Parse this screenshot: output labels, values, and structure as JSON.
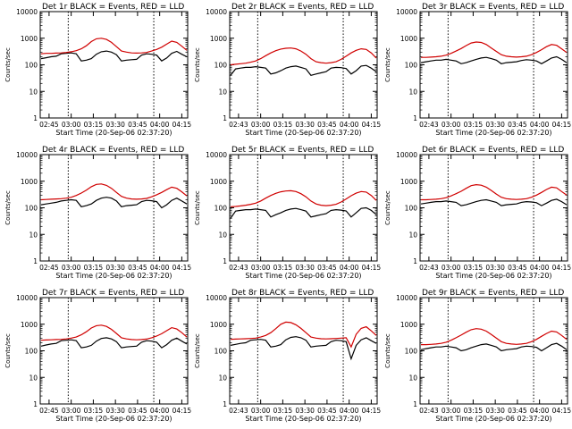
{
  "chart_data": [
    {
      "type": "line",
      "title": "Det 1r BLACK = Events, RED = LLD",
      "xlabel": "Start Time (20-Sep-06 02:37:20)",
      "ylabel": "Counts/sec",
      "ylog": true,
      "ylim": [
        1,
        10000
      ],
      "yticks": [
        "1",
        "10",
        "100",
        "1000",
        "10000"
      ],
      "xticks": [
        "02:45",
        "03:00",
        "03:15",
        "03:30",
        "03:45",
        "04:00",
        "04:15"
      ],
      "series": [
        {
          "name": "Events",
          "color": "#000000",
          "values": [
            170,
            185,
            200,
            210,
            260,
            270,
            280,
            260,
            140,
            150,
            170,
            250,
            310,
            330,
            300,
            240,
            140,
            150,
            155,
            160,
            230,
            260,
            250,
            230,
            140,
            180,
            270,
            320,
            250,
            200
          ]
        },
        {
          "name": "LLD",
          "color": "#d00000",
          "values": [
            260,
            270,
            270,
            275,
            280,
            290,
            310,
            340,
            400,
            520,
            750,
            950,
            1000,
            900,
            700,
            480,
            330,
            300,
            280,
            275,
            280,
            290,
            330,
            380,
            460,
            600,
            780,
            700,
            500,
            350
          ]
        }
      ]
    },
    {
      "type": "line",
      "title": "Det 2r BLACK = Events, RED = LLD",
      "xlabel": "Start Time (20-Sep-06 02:37:20)",
      "ylabel": "Counts/sec",
      "ylog": true,
      "ylim": [
        1,
        10000
      ],
      "yticks": [
        "1",
        "10",
        "100",
        "1000",
        "10000"
      ],
      "xticks": [
        "02:43",
        "03:00",
        "03:15",
        "03:30",
        "03:45",
        "04:00",
        "04:15"
      ],
      "series": [
        {
          "name": "Events",
          "color": "#000000",
          "values": [
            40,
            70,
            75,
            80,
            80,
            85,
            80,
            75,
            45,
            50,
            60,
            75,
            85,
            90,
            80,
            70,
            40,
            45,
            50,
            55,
            75,
            80,
            78,
            72,
            45,
            60,
            90,
            95,
            75,
            55
          ]
        },
        {
          "name": "LLD",
          "color": "#d00000",
          "values": [
            100,
            105,
            110,
            115,
            125,
            140,
            170,
            220,
            280,
            340,
            390,
            420,
            430,
            400,
            330,
            250,
            170,
            130,
            120,
            115,
            120,
            130,
            160,
            210,
            280,
            350,
            400,
            380,
            280,
            180
          ]
        }
      ]
    },
    {
      "type": "line",
      "title": "Det 3r BLACK = Events, RED = LLD",
      "xlabel": "Start Time (20-Sep-06 02:37:20)",
      "ylabel": "Counts/sec",
      "ylog": true,
      "ylim": [
        1,
        10000
      ],
      "yticks": [
        "1",
        "10",
        "100",
        "1000",
        "10000"
      ],
      "xticks": [
        "02:43",
        "03:00",
        "03:15",
        "03:30",
        "03:45",
        "04:00",
        "04:15"
      ],
      "series": [
        {
          "name": "Events",
          "color": "#000000",
          "values": [
            120,
            130,
            140,
            150,
            150,
            160,
            150,
            140,
            110,
            120,
            140,
            160,
            180,
            190,
            170,
            150,
            110,
            120,
            125,
            130,
            145,
            155,
            150,
            140,
            110,
            140,
            180,
            200,
            160,
            120
          ]
        },
        {
          "name": "LLD",
          "color": "#d00000",
          "values": [
            190,
            190,
            195,
            200,
            210,
            230,
            270,
            330,
            410,
            530,
            660,
            720,
            690,
            580,
            430,
            320,
            240,
            210,
            200,
            195,
            200,
            210,
            240,
            290,
            370,
            480,
            580,
            540,
            400,
            290
          ]
        }
      ]
    },
    {
      "type": "line",
      "title": "Det 4r BLACK = Events, RED = LLD",
      "xlabel": "Start Time (20-Sep-06 02:37:20)",
      "ylabel": "Counts/sec",
      "ylog": true,
      "ylim": [
        1,
        10000
      ],
      "yticks": [
        "1",
        "10",
        "100",
        "1000",
        "10000"
      ],
      "xticks": [
        "02:45",
        "03:00",
        "03:15",
        "03:30",
        "03:45",
        "04:00",
        "04:15"
      ],
      "series": [
        {
          "name": "Events",
          "color": "#000000",
          "values": [
            130,
            140,
            150,
            160,
            180,
            190,
            200,
            190,
            110,
            120,
            140,
            190,
            230,
            250,
            230,
            180,
            110,
            120,
            125,
            130,
            170,
            190,
            185,
            170,
            100,
            130,
            190,
            230,
            180,
            140
          ]
        },
        {
          "name": "LLD",
          "color": "#d00000",
          "values": [
            200,
            205,
            210,
            215,
            220,
            230,
            250,
            290,
            360,
            460,
            620,
            760,
            790,
            700,
            540,
            380,
            270,
            230,
            215,
            210,
            215,
            225,
            260,
            310,
            380,
            480,
            600,
            540,
            400,
            280
          ]
        }
      ]
    },
    {
      "type": "line",
      "title": "Det 5r BLACK = Events, RED = LLD",
      "xlabel": "Start Time (20-Sep-06 02:37:20)",
      "ylabel": "Counts/sec",
      "ylog": true,
      "ylim": [
        1,
        10000
      ],
      "yticks": [
        "1",
        "10",
        "100",
        "1000",
        "10000"
      ],
      "xticks": [
        "02:43",
        "03:00",
        "03:15",
        "03:30",
        "03:45",
        "04:00",
        "04:15"
      ],
      "series": [
        {
          "name": "Events",
          "color": "#000000",
          "values": [
            40,
            75,
            80,
            85,
            85,
            90,
            85,
            80,
            45,
            55,
            65,
            80,
            90,
            95,
            85,
            75,
            45,
            50,
            55,
            60,
            80,
            85,
            82,
            76,
            45,
            65,
            95,
            100,
            80,
            55
          ]
        },
        {
          "name": "LLD",
          "color": "#d00000",
          "values": [
            110,
            112,
            118,
            125,
            135,
            150,
            180,
            230,
            290,
            350,
            400,
            430,
            440,
            410,
            340,
            260,
            180,
            140,
            125,
            120,
            125,
            135,
            165,
            215,
            285,
            355,
            410,
            390,
            290,
            190
          ]
        }
      ]
    },
    {
      "type": "line",
      "title": "Det 6r BLACK = Events, RED = LLD",
      "xlabel": "Start Time (20-Sep-06 02:37:20)",
      "ylabel": "Counts/sec",
      "ylog": true,
      "ylim": [
        1,
        10000
      ],
      "yticks": [
        "1",
        "10",
        "100",
        "1000",
        "10000"
      ],
      "xticks": [
        "02:43",
        "03:00",
        "03:15",
        "03:30",
        "03:45",
        "04:00",
        "04:15"
      ],
      "series": [
        {
          "name": "Events",
          "color": "#000000",
          "values": [
            140,
            150,
            160,
            170,
            170,
            180,
            170,
            160,
            120,
            130,
            150,
            170,
            190,
            200,
            180,
            160,
            120,
            130,
            135,
            140,
            160,
            170,
            165,
            155,
            120,
            150,
            190,
            210,
            170,
            130
          ]
        },
        {
          "name": "LLD",
          "color": "#d00000",
          "values": [
            200,
            200,
            205,
            210,
            220,
            240,
            280,
            340,
            420,
            540,
            680,
            740,
            710,
            600,
            450,
            330,
            250,
            220,
            210,
            205,
            210,
            220,
            250,
            300,
            380,
            490,
            600,
            560,
            410,
            300
          ]
        }
      ]
    },
    {
      "type": "line",
      "title": "Det 7r BLACK = Events, RED = LLD",
      "xlabel": "Start Time (20-Sep-06 02:37:20)",
      "ylabel": "Counts/sec",
      "ylog": true,
      "ylim": [
        1,
        10000
      ],
      "yticks": [
        "1",
        "10",
        "100",
        "1000",
        "10000"
      ],
      "xticks": [
        "02:45",
        "03:00",
        "03:15",
        "03:30",
        "03:45",
        "04:00",
        "04:15"
      ],
      "series": [
        {
          "name": "Events",
          "color": "#000000",
          "values": [
            150,
            165,
            180,
            190,
            240,
            250,
            260,
            240,
            130,
            140,
            160,
            230,
            290,
            310,
            280,
            220,
            130,
            140,
            145,
            150,
            210,
            240,
            230,
            210,
            130,
            170,
            250,
            300,
            230,
            180
          ]
        },
        {
          "name": "LLD",
          "color": "#d00000",
          "values": [
            250,
            255,
            260,
            265,
            270,
            280,
            300,
            330,
            400,
            520,
            720,
            880,
            920,
            830,
            640,
            450,
            310,
            280,
            265,
            260,
            265,
            275,
            310,
            360,
            440,
            570,
            740,
            660,
            480,
            330
          ]
        }
      ]
    },
    {
      "type": "line",
      "title": "Det 8r BLACK = Events, RED = LLD",
      "xlabel": "Start Time (20-Sep-06 02:37:20)",
      "ylabel": "Counts/sec",
      "ylog": true,
      "ylim": [
        1,
        10000
      ],
      "yticks": [
        "1",
        "10",
        "100",
        "1000",
        "10000"
      ],
      "xticks": [
        "02:43",
        "03:00",
        "03:15",
        "03:30",
        "03:45",
        "04:00",
        "04:15"
      ],
      "series": [
        {
          "name": "Events",
          "color": "#000000",
          "values": [
            160,
            175,
            190,
            200,
            250,
            260,
            270,
            250,
            140,
            150,
            170,
            260,
            320,
            340,
            310,
            250,
            140,
            150,
            155,
            160,
            220,
            250,
            240,
            220,
            50,
            160,
            260,
            310,
            240,
            190
          ]
        },
        {
          "name": "LLD",
          "color": "#d00000",
          "values": [
            270,
            275,
            280,
            285,
            290,
            300,
            330,
            380,
            480,
            680,
            1000,
            1200,
            1150,
            950,
            700,
            480,
            330,
            300,
            285,
            280,
            285,
            290,
            300,
            310,
            140,
            420,
            700,
            800,
            560,
            380
          ]
        }
      ]
    },
    {
      "type": "line",
      "title": "Det 9r BLACK = Events, RED = LLD",
      "xlabel": "Start Time (20-Sep-06 02:37:20)",
      "ylabel": "Counts/sec",
      "ylog": true,
      "ylim": [
        1,
        10000
      ],
      "yticks": [
        "1",
        "10",
        "100",
        "1000",
        "10000"
      ],
      "xticks": [
        "02:43",
        "03:00",
        "03:15",
        "03:30",
        "03:45",
        "04:00",
        "04:15"
      ],
      "series": [
        {
          "name": "Events",
          "color": "#000000",
          "values": [
            110,
            120,
            130,
            140,
            140,
            150,
            140,
            130,
            100,
            110,
            130,
            150,
            170,
            180,
            160,
            140,
            100,
            110,
            115,
            120,
            140,
            150,
            145,
            135,
            100,
            130,
            170,
            190,
            150,
            110
          ]
        },
        {
          "name": "LLD",
          "color": "#d00000",
          "values": [
            170,
            170,
            175,
            180,
            190,
            210,
            250,
            310,
            390,
            500,
            620,
            680,
            650,
            550,
            410,
            300,
            220,
            190,
            180,
            175,
            180,
            190,
            220,
            270,
            350,
            450,
            550,
            510,
            380,
            270
          ]
        }
      ]
    }
  ]
}
